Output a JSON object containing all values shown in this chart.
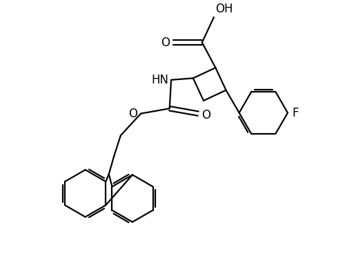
{
  "background_color": "#ffffff",
  "line_color": "#000000",
  "line_width": 1.6,
  "figsize": [
    5.0,
    3.87
  ],
  "dpi": 100,
  "xlim": [
    0,
    10
  ],
  "ylim": [
    0,
    7.74
  ]
}
